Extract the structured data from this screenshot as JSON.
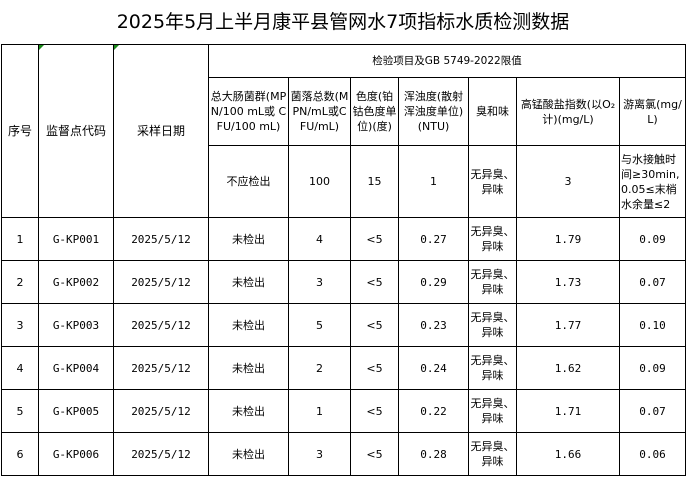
{
  "title": "2025年5月上半月康平县管网水7项指标水质检测数据",
  "headers": {
    "seq": "序号",
    "site_code": "监督点代码",
    "date": "采样日期",
    "group": "检验项目及GB 5749-2022限值",
    "items": [
      "总大肠菌群(MPN/100 mL或 CFU/100 mL)",
      "菌落总数(MPN/mL或CFU/mL)",
      "色度(铂钴色度单位)(度)",
      "浑浊度(散射浑浊度单位)(NTU)",
      "臭和味",
      "高锰酸盐指数(以O₂计)(mg/L)",
      "游离氯(mg/L)"
    ]
  },
  "limits": [
    "不应检出",
    "100",
    "15",
    "1",
    "无异臭、异味",
    "3",
    "与水接触时间≥30min,0.05≤末梢水余量≤2"
  ],
  "rows": [
    {
      "seq": "1",
      "code": "G-KP001",
      "date": "2025/5/12",
      "coliform": "未检出",
      "colony": "4",
      "color": "<5",
      "turbidity": "0.27",
      "odor": "无异臭、异味",
      "permanganate": "1.79",
      "chlorine": "0.09"
    },
    {
      "seq": "2",
      "code": "G-KP002",
      "date": "2025/5/12",
      "coliform": "未检出",
      "colony": "3",
      "color": "<5",
      "turbidity": "0.29",
      "odor": "无异臭、异味",
      "permanganate": "1.73",
      "chlorine": "0.07"
    },
    {
      "seq": "3",
      "code": "G-KP003",
      "date": "2025/5/12",
      "coliform": "未检出",
      "colony": "5",
      "color": "<5",
      "turbidity": "0.23",
      "odor": "无异臭、异味",
      "permanganate": "1.77",
      "chlorine": "0.10"
    },
    {
      "seq": "4",
      "code": "G-KP004",
      "date": "2025/5/12",
      "coliform": "未检出",
      "colony": "2",
      "color": "<5",
      "turbidity": "0.24",
      "odor": "无异臭、异味",
      "permanganate": "1.62",
      "chlorine": "0.09"
    },
    {
      "seq": "5",
      "code": "G-KP005",
      "date": "2025/5/12",
      "coliform": "未检出",
      "colony": "1",
      "color": "<5",
      "turbidity": "0.22",
      "odor": "无异臭、异味",
      "permanganate": "1.71",
      "chlorine": "0.07"
    },
    {
      "seq": "6",
      "code": "G-KP006",
      "date": "2025/5/12",
      "coliform": "未检出",
      "colony": "3",
      "color": "<5",
      "turbidity": "0.28",
      "odor": "无异臭、异味",
      "permanganate": "1.66",
      "chlorine": "0.06"
    }
  ]
}
